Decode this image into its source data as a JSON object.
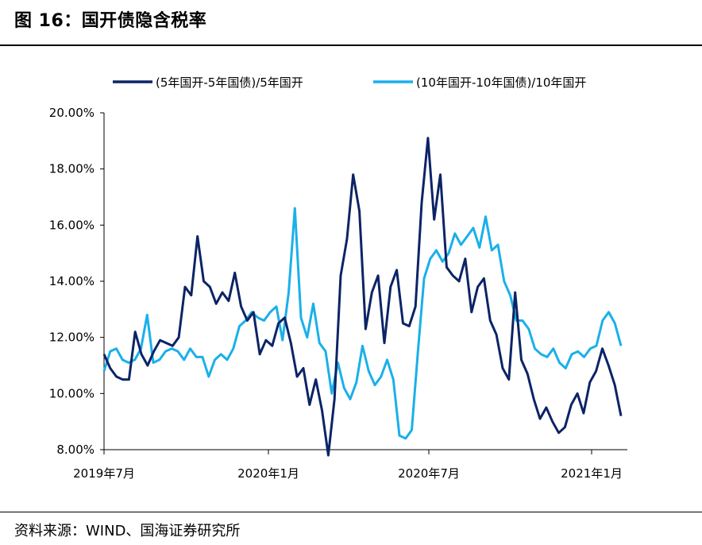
{
  "header": {
    "title": "图 16：国开债隐含税率"
  },
  "footer": {
    "source": "资料来源：WIND、国海证券研究所"
  },
  "colors": {
    "series1": "#0c2466",
    "series2": "#1ab0ea",
    "axis": "#000000"
  },
  "chart_data": {
    "type": "line",
    "title": "图 16：国开债隐含税率",
    "xlabel": "",
    "ylabel": "",
    "ylim": [
      8,
      20
    ],
    "yticks": [
      "8.00%",
      "10.00%",
      "12.00%",
      "14.00%",
      "16.00%",
      "18.00%",
      "20.00%"
    ],
    "ytick_values": [
      8,
      10,
      12,
      14,
      16,
      18,
      20
    ],
    "xticks": [
      "2019年7月",
      "2020年1月",
      "2020年7月",
      "2021年1月"
    ],
    "xtick_weeks": [
      0,
      26,
      52,
      78
    ],
    "x_unit": "weeks since 2019-07",
    "grid": false,
    "legend": "top",
    "series": [
      {
        "name": "(5年国开-5年国债)/5年国开",
        "values": [
          11.4,
          10.9,
          10.6,
          10.5,
          10.5,
          12.2,
          11.4,
          11.0,
          11.5,
          11.9,
          11.8,
          11.7,
          12.0,
          13.8,
          13.5,
          15.6,
          14.0,
          13.8,
          13.2,
          13.6,
          13.3,
          14.3,
          13.1,
          12.6,
          12.9,
          11.4,
          11.9,
          11.7,
          12.5,
          12.7,
          11.8,
          10.6,
          10.9,
          9.6,
          10.5,
          9.4,
          7.8,
          9.8,
          14.2,
          15.5,
          17.8,
          16.5,
          12.3,
          13.6,
          14.2,
          11.8,
          13.8,
          14.4,
          12.5,
          12.4,
          13.1,
          16.8,
          19.1,
          16.2,
          17.8,
          14.5,
          14.2,
          14.0,
          14.8,
          12.9,
          13.8,
          14.1,
          12.6,
          12.1,
          10.9,
          10.5,
          13.6,
          11.2,
          10.7,
          9.8,
          9.1,
          9.5,
          9.0,
          8.6,
          8.8,
          9.6,
          10.0,
          9.3,
          10.4,
          10.8,
          11.6,
          11.0,
          10.3,
          9.2
        ]
      },
      {
        "name": "(10年国开-10年国债)/10年国开",
        "values": [
          10.8,
          11.5,
          11.6,
          11.2,
          11.1,
          11.2,
          11.6,
          12.8,
          11.1,
          11.2,
          11.5,
          11.6,
          11.5,
          11.2,
          11.6,
          11.3,
          11.3,
          10.6,
          11.2,
          11.4,
          11.2,
          11.6,
          12.4,
          12.6,
          12.9,
          12.7,
          12.6,
          12.9,
          13.1,
          11.9,
          13.6,
          16.6,
          12.7,
          12.0,
          13.2,
          11.8,
          11.5,
          10.0,
          11.1,
          10.2,
          9.8,
          10.4,
          11.7,
          10.8,
          10.3,
          10.6,
          11.2,
          10.5,
          8.5,
          8.4,
          8.7,
          11.5,
          14.1,
          14.8,
          15.1,
          14.7,
          15.0,
          15.7,
          15.3,
          15.6,
          15.9,
          15.2,
          16.3,
          15.1,
          15.3,
          14.0,
          13.5,
          12.6,
          12.6,
          12.3,
          11.6,
          11.4,
          11.3,
          11.6,
          11.1,
          10.9,
          11.4,
          11.5,
          11.3,
          11.6,
          11.7,
          12.6,
          12.9,
          12.5,
          11.7
        ]
      }
    ]
  }
}
